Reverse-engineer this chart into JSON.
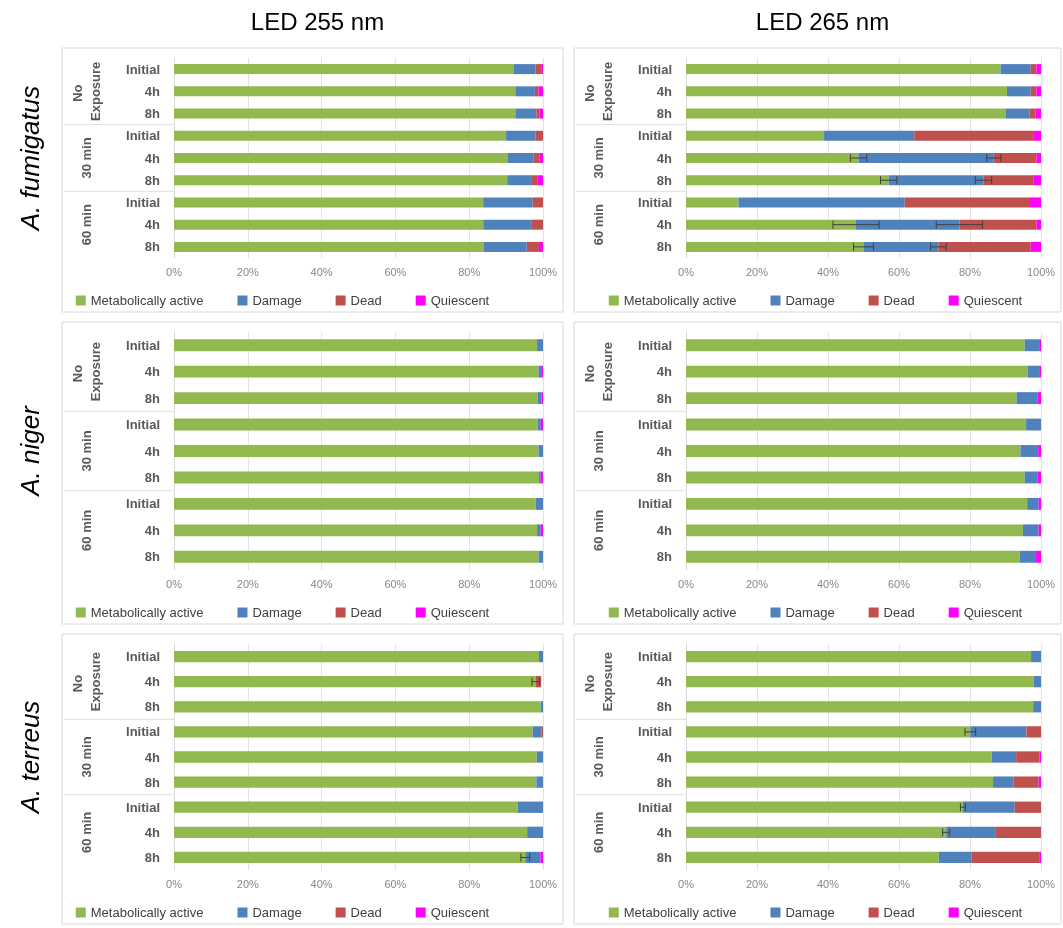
{
  "chart_data": [
    {
      "type": "bar",
      "orientation": "horizontal",
      "stacked": true,
      "title": "LED 255 nm",
      "ylabel": "A. fumigatus",
      "categories": [
        "Initial",
        "4h",
        "8h",
        "Initial",
        "4h",
        "8h",
        "Initial",
        "4h",
        "8h"
      ],
      "annotations": [
        "No Exposure",
        "30 min",
        "60 min"
      ],
      "series": [
        {
          "name": "Metabolically active",
          "color": "#92b94f",
          "values": [
            92,
            92.5,
            92.5,
            90,
            90.5,
            90.3,
            83.8,
            83.8,
            84
          ]
        },
        {
          "name": "Damage",
          "color": "#4f81bd",
          "values": [
            6,
            5.3,
            5.7,
            8,
            7,
            6.7,
            13.4,
            13,
            11.6
          ]
        },
        {
          "name": "Dead",
          "color": "#c0504d",
          "values": [
            1.5,
            1,
            0.8,
            2,
            1.5,
            1.6,
            2.8,
            3.2,
            3.3
          ]
        },
        {
          "name": "Quiescent",
          "color": "#ff00ff",
          "values": [
            0.5,
            1.2,
            1,
            0,
            1,
            1.4,
            0,
            0,
            1.1
          ]
        }
      ],
      "xlim": [
        0,
        100
      ],
      "xticks": [
        {
          "value": 0,
          "label": "0%"
        },
        {
          "value": 20,
          "label": "20%"
        },
        {
          "value": 40,
          "label": "40%"
        },
        {
          "value": 60,
          "label": "60%"
        },
        {
          "value": 80,
          "label": "80%"
        },
        {
          "value": 100,
          "label": "100%"
        }
      ],
      "grid": "x",
      "legend": "bottom"
    },
    {
      "type": "bar",
      "orientation": "horizontal",
      "stacked": true,
      "title": "LED 265 nm",
      "categories": [
        "Initial",
        "4h",
        "8h",
        "Initial",
        "4h",
        "8h",
        "Initial",
        "4h",
        "8h"
      ],
      "annotations": [
        "No Exposure",
        "30 min",
        "60 min"
      ],
      "series": [
        {
          "name": "Metabolically active",
          "color": "#92b94f",
          "values": [
            88.6,
            90.4,
            90,
            38.9,
            48.6,
            57.1,
            14.8,
            47.9,
            50
          ],
          "errors": [
            null,
            null,
            null,
            null,
            2.3,
            2.3,
            null,
            6.5,
            2.8
          ]
        },
        {
          "name": "Damage",
          "color": "#4f81bd",
          "values": [
            8.5,
            6.7,
            6.8,
            25.4,
            38.1,
            26.7,
            46.8,
            29.1,
            21.1
          ],
          "errors": [
            null,
            null,
            null,
            null,
            2,
            2.3,
            null,
            6.5,
            2.2
          ]
        },
        {
          "name": "Dead",
          "color": "#c0504d",
          "values": [
            1.6,
            1.6,
            1.6,
            33.5,
            12,
            14,
            35.3,
            21.7,
            26
          ]
        },
        {
          "name": "Quiescent",
          "color": "#ff00ff",
          "values": [
            1.3,
            1.3,
            1.6,
            2.2,
            1.3,
            2.2,
            3.1,
            1.3,
            2.9
          ]
        }
      ],
      "xlim": [
        0,
        100
      ],
      "xticks": [
        {
          "value": 0,
          "label": "0%"
        },
        {
          "value": 20,
          "label": "20%"
        },
        {
          "value": 40,
          "label": "40%"
        },
        {
          "value": 60,
          "label": "60%"
        },
        {
          "value": 80,
          "label": "80%"
        },
        {
          "value": 100,
          "label": "100%"
        }
      ],
      "grid": "x",
      "legend": "bottom"
    },
    {
      "type": "bar",
      "orientation": "horizontal",
      "stacked": true,
      "ylabel": "A. niger",
      "categories": [
        "Initial",
        "4h",
        "8h",
        "Initial",
        "4h",
        "8h",
        "Initial",
        "4h",
        "8h"
      ],
      "annotations": [
        "No Exposure",
        "30 min",
        "60 min"
      ],
      "series": [
        {
          "name": "Metabolically active",
          "color": "#92b94f",
          "values": [
            98.4,
            98.8,
            98.6,
            98.6,
            98.8,
            98.9,
            98,
            98.4,
            98.8
          ]
        },
        {
          "name": "Damage",
          "color": "#4f81bd",
          "values": [
            1.6,
            0.7,
            1,
            0.8,
            1.2,
            0.5,
            2,
            1,
            1.2
          ]
        },
        {
          "name": "Dead",
          "color": "#c0504d",
          "values": [
            0,
            0,
            0,
            0,
            0,
            0,
            0,
            0,
            0
          ]
        },
        {
          "name": "Quiescent",
          "color": "#ff00ff",
          "values": [
            0,
            0.5,
            0.4,
            0.6,
            0,
            0.6,
            0,
            0.6,
            0
          ]
        }
      ],
      "xlim": [
        0,
        100
      ],
      "xticks": [
        {
          "value": 0,
          "label": "0%"
        },
        {
          "value": 20,
          "label": "20%"
        },
        {
          "value": 40,
          "label": "40%"
        },
        {
          "value": 60,
          "label": "60%"
        },
        {
          "value": 80,
          "label": "80%"
        },
        {
          "value": 100,
          "label": "100%"
        }
      ],
      "grid": "x",
      "legend": "bottom"
    },
    {
      "type": "bar",
      "orientation": "horizontal",
      "stacked": true,
      "categories": [
        "Initial",
        "4h",
        "8h",
        "Initial",
        "4h",
        "8h",
        "Initial",
        "4h",
        "8h"
      ],
      "annotations": [
        "No Exposure",
        "30 min",
        "60 min"
      ],
      "series": [
        {
          "name": "Metabolically active",
          "color": "#92b94f",
          "values": [
            95.4,
            96.3,
            93.1,
            95.8,
            94.2,
            95.4,
            96.1,
            94.9,
            94
          ]
        },
        {
          "name": "Damage",
          "color": "#4f81bd",
          "values": [
            4.3,
            3.4,
            6,
            4.2,
            5,
            3.7,
            3.2,
            4.4,
            4.6
          ]
        },
        {
          "name": "Dead",
          "color": "#c0504d",
          "values": [
            0,
            0,
            0,
            0,
            0,
            0,
            0,
            0,
            0
          ]
        },
        {
          "name": "Quiescent",
          "color": "#ff00ff",
          "values": [
            0.3,
            0.3,
            0.9,
            0,
            0.8,
            0.9,
            0.7,
            0.7,
            1.4
          ]
        }
      ],
      "xlim": [
        0,
        100
      ],
      "xticks": [
        {
          "value": 0,
          "label": "0%"
        },
        {
          "value": 20,
          "label": "20%"
        },
        {
          "value": 40,
          "label": "40%"
        },
        {
          "value": 60,
          "label": "60%"
        },
        {
          "value": 80,
          "label": "80%"
        },
        {
          "value": 100,
          "label": "100%"
        }
      ],
      "grid": "x",
      "legend": "bottom"
    },
    {
      "type": "bar",
      "orientation": "horizontal",
      "stacked": true,
      "ylabel": "A. terreus",
      "categories": [
        "Initial",
        "4h",
        "8h",
        "Initial",
        "4h",
        "8h",
        "Initial",
        "4h",
        "8h"
      ],
      "annotations": [
        "No Exposure",
        "30 min",
        "60 min"
      ],
      "series": [
        {
          "name": "Metabolically active",
          "color": "#92b94f",
          "values": [
            98.9,
            98,
            99.4,
            97.2,
            98.3,
            98.2,
            93.1,
            95.7,
            95.2
          ],
          "errors": [
            null,
            1,
            null,
            null,
            null,
            null,
            null,
            null,
            1.2
          ]
        },
        {
          "name": "Damage",
          "color": "#4f81bd",
          "values": [
            1.1,
            null,
            0.6,
            2.4,
            1.7,
            1.8,
            6.9,
            4.3,
            4.1
          ]
        },
        {
          "name": "Dead",
          "color": "#c0504d",
          "values": [
            0,
            1.5,
            0,
            0.4,
            0,
            0,
            0,
            0,
            0
          ]
        },
        {
          "name": "Quiescent",
          "color": "#ff00ff",
          "values": [
            0,
            0,
            0,
            0,
            0,
            0,
            0,
            0,
            0.7
          ]
        }
      ],
      "xlim": [
        0,
        100
      ],
      "xticks": [
        {
          "value": 0,
          "label": "0%"
        },
        {
          "value": 20,
          "label": "20%"
        },
        {
          "value": 40,
          "label": "40%"
        },
        {
          "value": 60,
          "label": "60%"
        },
        {
          "value": 80,
          "label": "80%"
        },
        {
          "value": 100,
          "label": "100%"
        }
      ],
      "grid": "x",
      "legend": "bottom"
    },
    {
      "type": "bar",
      "orientation": "horizontal",
      "stacked": true,
      "categories": [
        "Initial",
        "4h",
        "8h",
        "Initial",
        "4h",
        "8h",
        "Initial",
        "4h",
        "8h"
      ],
      "annotations": [
        "No Exposure",
        "30 min",
        "60 min"
      ],
      "series": [
        {
          "name": "Metabolically active",
          "color": "#92b94f",
          "values": [
            97.2,
            98,
            97.8,
            80.1,
            86.1,
            86.5,
            78,
            73.3,
            71.2
          ],
          "errors": [
            null,
            null,
            null,
            1.5,
            null,
            null,
            0.7,
            1,
            null
          ]
        },
        {
          "name": "Damage",
          "color": "#4f81bd",
          "values": [
            2.8,
            2,
            2.2,
            15.8,
            6.9,
            5.7,
            14.6,
            14,
            9.3
          ]
        },
        {
          "name": "Dead",
          "color": "#c0504d",
          "values": [
            0,
            0,
            0,
            4.1,
            6.6,
            7.1,
            7.4,
            12.7,
            19
          ]
        },
        {
          "name": "Quiescent",
          "color": "#ff00ff",
          "values": [
            0,
            0,
            0,
            0,
            0.4,
            0.7,
            0,
            0,
            0.5
          ]
        }
      ],
      "xlim": [
        0,
        100
      ],
      "xticks": [
        {
          "value": 0,
          "label": "0%"
        },
        {
          "value": 20,
          "label": "20%"
        },
        {
          "value": 40,
          "label": "40%"
        },
        {
          "value": 60,
          "label": "60%"
        },
        {
          "value": 80,
          "label": "80%"
        },
        {
          "value": 100,
          "label": "100%"
        }
      ],
      "grid": "x",
      "legend": "bottom"
    }
  ]
}
